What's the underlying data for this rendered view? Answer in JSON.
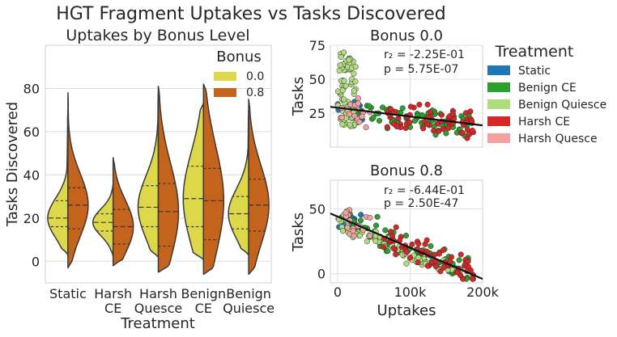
{
  "figure_title": "HGT Fragment Uptakes vs Tasks Discovered",
  "colors": {
    "bonus_0_0": "#dcd84a",
    "bonus_0_8": "#c4631c",
    "static": "#1f77b4",
    "benign_ce": "#2ca02c",
    "benign_quiesce": "#b0dc80",
    "harsh_ce": "#d62728",
    "harsh_quesce": "#f4a0a0",
    "regression": "#111111"
  },
  "chart_data": [
    {
      "type": "violin",
      "title": "Uptakes by Bonus Level",
      "xlabel": "Treatment",
      "ylabel": "Tasks Discovered",
      "ylim": [
        -10,
        100
      ],
      "yticks": [
        0,
        20,
        40,
        60,
        80
      ],
      "categories": [
        "Static",
        "Harsh\nCE",
        "Harsh\nQuesce",
        "Benign\nCE",
        "Benign\nQuiesce"
      ],
      "legend": {
        "title": "Bonus",
        "placement": "top-right",
        "entries": [
          "0.0",
          "0.8"
        ]
      },
      "series": [
        {
          "name": "0.0",
          "quartiles": [
            [
              16,
              20,
              28
            ],
            [
              14,
              18,
              22
            ],
            [
              16,
              25,
              35
            ],
            [
              16,
              29,
              44
            ],
            [
              15,
              22,
              30
            ]
          ],
          "range": [
            [
              3,
              70
            ],
            [
              2,
              36
            ],
            [
              2,
              78
            ],
            [
              1,
              73
            ],
            [
              3,
              70
            ]
          ]
        },
        {
          "name": "0.8",
          "quartiles": [
            [
              15,
              26,
              34
            ],
            [
              8,
              16,
              24
            ],
            [
              7,
              23,
              36
            ],
            [
              10,
              28,
              43
            ],
            [
              14,
              26,
              38
            ]
          ],
          "range": [
            [
              -3,
              78
            ],
            [
              -2,
              48
            ],
            [
              -5,
              81
            ],
            [
              -6,
              82
            ],
            [
              -6,
              75
            ]
          ]
        }
      ]
    },
    {
      "type": "scatter",
      "title": "Bonus 0.0",
      "xlabel": "",
      "ylabel": "Tasks",
      "xlim": [
        -10000,
        200000
      ],
      "ylim": [
        0,
        75
      ],
      "yticks": [
        25,
        50,
        75
      ],
      "annotations": [
        "r₂ = -2.25E-01",
        "p = 5.75E-07"
      ],
      "regression": {
        "intercept": 29,
        "slope_per_100k": -6.5
      }
    },
    {
      "type": "scatter",
      "title": "Bonus 0.8",
      "xlabel": "Uptakes",
      "ylabel": "Tasks",
      "xlim": [
        -10000,
        200000
      ],
      "ylim": [
        -7,
        72
      ],
      "xticks": [
        "0",
        "100k",
        "200k"
      ],
      "yticks": [
        0,
        50
      ],
      "annotations": [
        "r₂ = -6.44E-01",
        "p = 2.50E-47"
      ],
      "regression": {
        "intercept": 44,
        "slope_per_100k": -24
      }
    }
  ],
  "treatment_legend": {
    "title": "Treatment",
    "entries": [
      "Static",
      "Benign CE",
      "Benign Quiesce",
      "Harsh CE",
      "Harsh Quesce"
    ]
  }
}
